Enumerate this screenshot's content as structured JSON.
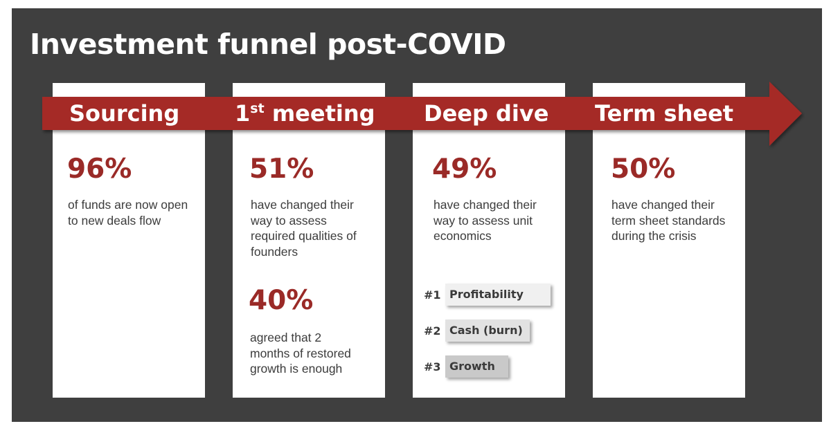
{
  "title": "Investment funnel post-COVID",
  "colors": {
    "background": "#3f3f3f",
    "card": "#ffffff",
    "arrow": "#a52b28",
    "accent_text": "#9a2a27"
  },
  "stages": [
    {
      "label": "Sourcing",
      "stats": [
        {
          "value": "96%",
          "text": "of funds are now open to new deals flow"
        }
      ]
    },
    {
      "label": "1",
      "label_sup": "st",
      "label_rest": " meeting",
      "stats": [
        {
          "value": "51%",
          "text": "have changed their way to assess required qualities of founders"
        },
        {
          "value": "40%",
          "text": "agreed that 2 months of restored growth is enough"
        }
      ]
    },
    {
      "label": "Deep dive",
      "stats": [
        {
          "value": "49%",
          "text": "have changed their way to assess unit economics"
        }
      ],
      "ranking": [
        {
          "rank": "#1",
          "label": "Profitability",
          "level": 1.0
        },
        {
          "rank": "#2",
          "label": "Cash (burn)",
          "level": 0.8
        },
        {
          "rank": "#3",
          "label": "Growth",
          "level": 0.6
        }
      ]
    },
    {
      "label": "Term sheet",
      "stats": [
        {
          "value": "50%",
          "text": "have changed their term sheet standards during the crisis"
        }
      ]
    }
  ]
}
